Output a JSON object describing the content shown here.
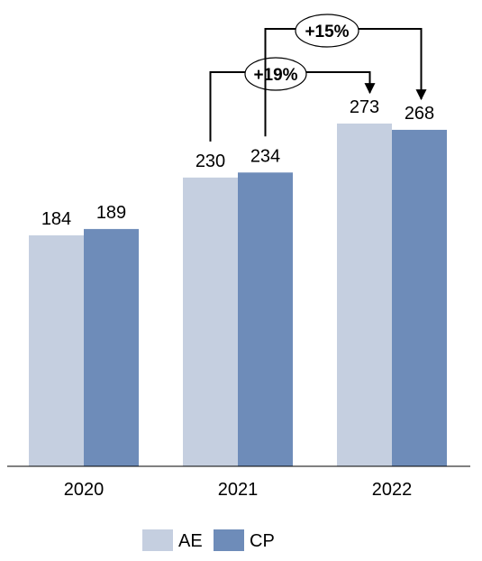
{
  "chart_data": {
    "type": "bar",
    "categories": [
      "2020",
      "2021",
      "2022"
    ],
    "series": [
      {
        "name": "AE",
        "values": [
          184,
          230,
          273
        ],
        "color": "#c5cfe0"
      },
      {
        "name": "CP",
        "values": [
          189,
          234,
          268
        ],
        "color": "#6e8cb9"
      }
    ],
    "ylim": [
      0,
      400
    ],
    "grid": false,
    "legend_position": "bottom",
    "annotations": [
      {
        "text": "+19%",
        "from": {
          "category": "2021",
          "series": "AE"
        },
        "to": {
          "category": "2022",
          "series": "AE"
        }
      },
      {
        "text": "+15%",
        "from": {
          "category": "2021",
          "series": "CP"
        },
        "to": {
          "category": "2022",
          "series": "CP"
        }
      }
    ]
  }
}
